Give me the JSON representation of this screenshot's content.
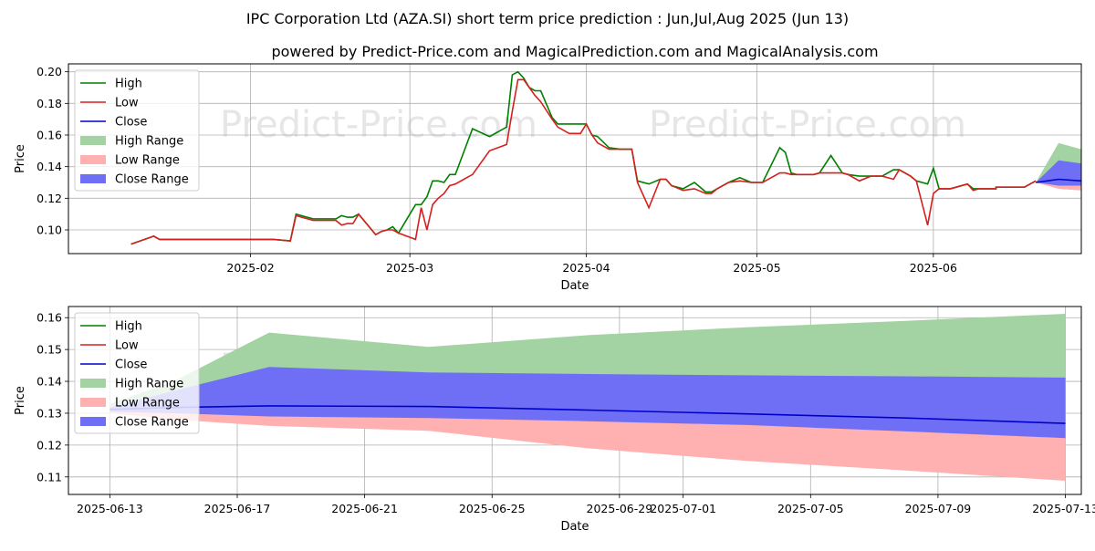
{
  "title": "IPC Corporation Ltd (AZA.SI) short term price prediction : Jun,Jul,Aug 2025 (Jun 13)",
  "subtitle": "powered by Predict-Price.com and MagicalPrediction.com and MagicalAnalysis.com",
  "watermark": "Predict-Price.com",
  "colors": {
    "high": "#008000",
    "low": "#d62020",
    "close": "#0000cc",
    "high_range": "#a3d3a3",
    "low_range": "#ffb0b0",
    "close_range": "#6f6ff5"
  },
  "legend": [
    "High",
    "Low",
    "Close",
    "High Range",
    "Low Range",
    "Close Range"
  ],
  "chart_data": [
    {
      "type": "line",
      "xlabel": "Date",
      "ylabel": "Price",
      "xlim": [
        -11,
        167
      ],
      "ylim": [
        0.085,
        0.205
      ],
      "yticks": [
        0.1,
        0.12,
        0.14,
        0.16,
        0.18,
        0.2
      ],
      "ytick_labels": [
        "0.10",
        "0.12",
        "0.14",
        "0.16",
        "0.18",
        "0.20"
      ],
      "xticks": [
        21,
        49,
        80,
        110,
        141,
        171
      ],
      "xtick_labels": [
        "2025-02",
        "2025-03",
        "2025-04",
        "2025-05",
        "2025-06",
        "2025-07"
      ],
      "history_x": [
        0,
        4,
        5,
        8,
        11,
        14,
        15,
        18,
        21,
        24,
        25,
        28,
        29,
        32,
        33,
        36,
        37,
        38,
        39,
        40,
        43,
        44,
        45,
        46,
        47,
        50,
        51,
        52,
        53,
        54,
        55,
        56,
        57,
        60,
        63,
        66,
        67,
        68,
        69,
        70,
        71,
        72,
        74,
        75,
        77,
        79,
        80,
        81,
        82,
        84,
        86,
        87,
        88,
        89,
        91,
        93,
        94,
        95,
        97,
        99,
        101,
        102,
        103,
        105,
        107,
        109,
        111,
        114,
        115,
        116,
        117,
        120,
        121,
        123,
        125,
        126,
        128,
        130,
        131,
        132,
        134,
        135,
        137,
        138,
        140,
        141,
        142,
        143,
        144,
        145,
        147,
        148,
        149,
        150,
        151,
        152
      ],
      "series": [
        {
          "name": "High",
          "values": [
            0.091,
            0.096,
            0.094,
            0.094,
            0.094,
            0.094,
            0.094,
            0.094,
            0.094,
            0.094,
            0.094,
            0.093,
            0.11,
            0.107,
            0.107,
            0.107,
            0.109,
            0.108,
            0.108,
            0.11,
            0.097,
            0.099,
            0.1,
            0.102,
            0.098,
            0.116,
            0.116,
            0.121,
            0.131,
            0.131,
            0.13,
            0.135,
            0.135,
            0.164,
            0.159,
            0.165,
            0.198,
            0.2,
            0.196,
            0.19,
            0.188,
            0.188,
            0.171,
            0.167,
            0.167,
            0.167,
            0.167,
            0.16,
            0.159,
            0.152,
            0.151,
            0.151,
            0.151,
            0.131,
            0.129,
            0.132,
            0.132,
            0.128,
            0.126,
            0.13,
            0.124,
            0.124,
            0.126,
            0.13,
            0.133,
            0.13,
            0.13,
            0.152,
            0.149,
            0.136,
            0.135,
            0.135,
            0.136,
            0.147,
            0.136,
            0.135,
            0.134,
            0.134,
            0.134,
            0.134,
            0.138,
            0.138,
            0.134,
            0.131,
            0.129,
            0.139,
            0.126,
            0.126,
            0.126,
            0.127,
            0.129,
            0.126,
            0.126,
            0.126,
            0.126,
            0.126
          ]
        },
        {
          "name": "Low",
          "values": [
            0.091,
            0.096,
            0.094,
            0.094,
            0.094,
            0.094,
            0.094,
            0.094,
            0.094,
            0.094,
            0.094,
            0.093,
            0.109,
            0.106,
            0.106,
            0.106,
            0.103,
            0.104,
            0.104,
            0.11,
            0.097,
            0.099,
            0.1,
            0.1,
            0.098,
            0.094,
            0.114,
            0.1,
            0.116,
            0.12,
            0.123,
            0.128,
            0.129,
            0.135,
            0.15,
            0.154,
            0.175,
            0.195,
            0.195,
            0.19,
            0.185,
            0.181,
            0.17,
            0.165,
            0.161,
            0.161,
            0.167,
            0.16,
            0.155,
            0.151,
            0.151,
            0.151,
            0.151,
            0.13,
            0.114,
            0.132,
            0.132,
            0.128,
            0.125,
            0.126,
            0.123,
            0.123,
            0.126,
            0.13,
            0.131,
            0.13,
            0.13,
            0.136,
            0.136,
            0.135,
            0.135,
            0.135,
            0.136,
            0.136,
            0.136,
            0.135,
            0.131,
            0.134,
            0.134,
            0.134,
            0.132,
            0.138,
            0.134,
            0.131,
            0.103,
            0.123,
            0.126,
            0.126,
            0.126,
            0.127,
            0.129,
            0.125,
            0.126,
            0.126,
            0.126,
            0.126
          ]
        },
        {
          "name": "Future High",
          "values": [
            0.127,
            0.127,
            0.127,
            0.127,
            0.129,
            0.131
          ]
        },
        {
          "name": "Future Low",
          "values": [
            0.127,
            0.127,
            0.127,
            0.127,
            0.129,
            0.131
          ]
        }
      ],
      "future_x": [
        152,
        153,
        155,
        157,
        158,
        159
      ],
      "forecast": {
        "x": [
          159,
          163,
          167
        ],
        "close": [
          0.13,
          0.132,
          0.131
        ],
        "high_range": [
          [
            0.13,
            0.13
          ],
          [
            0.155,
            0.126
          ],
          [
            0.151,
            0.125
          ]
        ],
        "low_range": [
          [
            0.13,
            0.13
          ],
          [
            0.132,
            0.126
          ],
          [
            0.13,
            0.125
          ]
        ],
        "close_range": [
          [
            0.13,
            0.13
          ],
          [
            0.144,
            0.128
          ],
          [
            0.142,
            0.128
          ]
        ]
      },
      "forecast_tail_x": [
        167,
        190
      ],
      "forecast_tail": {
        "close": [
          0.131,
          0.127
        ],
        "high_top": [
          0.151,
          0.161
        ],
        "low_bottom": [
          0.125,
          0.109
        ],
        "close_top": [
          0.142,
          0.141
        ],
        "close_bottom": [
          0.128,
          0.122
        ]
      }
    },
    {
      "type": "area",
      "xlabel": "Date",
      "ylabel": "Price",
      "xlim": [
        -1.3,
        30.5
      ],
      "ylim": [
        0.1045,
        0.1635
      ],
      "yticks": [
        0.11,
        0.12,
        0.13,
        0.14,
        0.15,
        0.16
      ],
      "ytick_labels": [
        "0.11",
        "0.12",
        "0.13",
        "0.14",
        "0.15",
        "0.16"
      ],
      "xticks": [
        0,
        4,
        8,
        12,
        16,
        18,
        22,
        26,
        30
      ],
      "xtick_labels": [
        "2025-06-13",
        "2025-06-17",
        "2025-06-21",
        "2025-06-25",
        "2025-06-29",
        "2025-07-01",
        "2025-07-05",
        "2025-07-09",
        "2025-07-13"
      ],
      "x": [
        0,
        2,
        5,
        10,
        15,
        20,
        25,
        30
      ],
      "series": [
        {
          "name": "Close",
          "values": [
            0.1312,
            0.1318,
            0.1323,
            0.1321,
            0.131,
            0.1298,
            0.1285,
            0.1268
          ]
        },
        {
          "name": "High Range top",
          "values": [
            0.133,
            0.14,
            0.1553,
            0.1508,
            0.1545,
            0.157,
            0.159,
            0.1612
          ]
        },
        {
          "name": "Low Range bottom",
          "values": [
            0.13,
            0.128,
            0.126,
            0.1245,
            0.119,
            0.115,
            0.112,
            0.1088
          ]
        },
        {
          "name": "Close Range top",
          "values": [
            0.1318,
            0.137,
            0.1445,
            0.1428,
            0.1423,
            0.1419,
            0.1416,
            0.1412
          ]
        },
        {
          "name": "Close Range bottom",
          "values": [
            0.1305,
            0.13,
            0.129,
            0.1285,
            0.1275,
            0.1263,
            0.1243,
            0.1222
          ]
        }
      ]
    }
  ]
}
